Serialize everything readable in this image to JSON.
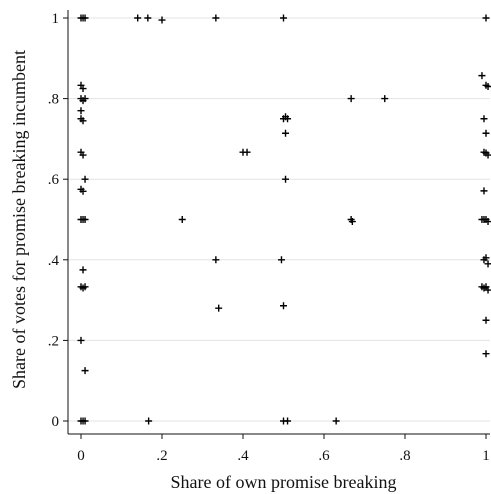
{
  "chart_data": {
    "type": "scatter",
    "xlabel": "Share of own promise breaking",
    "ylabel": "Share of votes for promise breaking incumbent",
    "xlim": [
      0,
      1
    ],
    "ylim": [
      0,
      1
    ],
    "x_ticks": [
      {
        "value": 0,
        "label": "0"
      },
      {
        "value": 0.2,
        "label": ".2"
      },
      {
        "value": 0.4,
        "label": ".4"
      },
      {
        "value": 0.6,
        "label": ".6"
      },
      {
        "value": 0.8,
        "label": ".8"
      },
      {
        "value": 1,
        "label": "1"
      }
    ],
    "y_ticks": [
      {
        "value": 0,
        "label": "0"
      },
      {
        "value": 0.2,
        "label": ".2"
      },
      {
        "value": 0.4,
        "label": ".4"
      },
      {
        "value": 0.6,
        "label": ".6"
      },
      {
        "value": 0.8,
        "label": ".8"
      },
      {
        "value": 1,
        "label": "1"
      }
    ],
    "grid": "horizontal",
    "marker": "plus",
    "colors": {
      "marker": "#000000",
      "grid": "#e3e3e3",
      "axis": "#111111"
    },
    "points": [
      {
        "x": 0,
        "y": 1
      },
      {
        "x": 0.005,
        "y": 1
      },
      {
        "x": 0.01,
        "y": 1
      },
      {
        "x": 0.14,
        "y": 1
      },
      {
        "x": 0.165,
        "y": 1
      },
      {
        "x": 0.2,
        "y": 0.995
      },
      {
        "x": 0.333,
        "y": 1
      },
      {
        "x": 0.5,
        "y": 1
      },
      {
        "x": 1,
        "y": 1
      },
      {
        "x": 0,
        "y": 0.833
      },
      {
        "x": 0.005,
        "y": 0.825
      },
      {
        "x": 0,
        "y": 0.8
      },
      {
        "x": 0.005,
        "y": 0.795
      },
      {
        "x": 0.01,
        "y": 0.8
      },
      {
        "x": 0,
        "y": 0.77
      },
      {
        "x": 0,
        "y": 0.75
      },
      {
        "x": 0.005,
        "y": 0.745
      },
      {
        "x": 0,
        "y": 0.667
      },
      {
        "x": 0.005,
        "y": 0.66
      },
      {
        "x": 0.01,
        "y": 0.6
      },
      {
        "x": 0,
        "y": 0.575
      },
      {
        "x": 0.005,
        "y": 0.57
      },
      {
        "x": 0,
        "y": 0.5
      },
      {
        "x": 0.005,
        "y": 0.5
      },
      {
        "x": 0.01,
        "y": 0.5
      },
      {
        "x": 0.005,
        "y": 0.375
      },
      {
        "x": 0,
        "y": 0.333
      },
      {
        "x": 0.005,
        "y": 0.33
      },
      {
        "x": 0.01,
        "y": 0.333
      },
      {
        "x": 0,
        "y": 0.2
      },
      {
        "x": 0.01,
        "y": 0.125
      },
      {
        "x": 0,
        "y": 0
      },
      {
        "x": 0.005,
        "y": 0
      },
      {
        "x": 0.01,
        "y": 0
      },
      {
        "x": 0.167,
        "y": 0
      },
      {
        "x": 0.25,
        "y": 0.5
      },
      {
        "x": 0.333,
        "y": 0.4
      },
      {
        "x": 0.34,
        "y": 0.28
      },
      {
        "x": 0.4,
        "y": 0.667
      },
      {
        "x": 0.41,
        "y": 0.667
      },
      {
        "x": 0.495,
        "y": 0.4
      },
      {
        "x": 0.5,
        "y": 0.286
      },
      {
        "x": 0.5,
        "y": 0.75
      },
      {
        "x": 0.505,
        "y": 0.755
      },
      {
        "x": 0.51,
        "y": 0.75
      },
      {
        "x": 0.505,
        "y": 0.714
      },
      {
        "x": 0.505,
        "y": 0.6
      },
      {
        "x": 0.5,
        "y": 0
      },
      {
        "x": 0.51,
        "y": 0
      },
      {
        "x": 0.63,
        "y": 0
      },
      {
        "x": 0.667,
        "y": 0.8
      },
      {
        "x": 0.75,
        "y": 0.8
      },
      {
        "x": 0.667,
        "y": 0.5
      },
      {
        "x": 0.67,
        "y": 0.495
      },
      {
        "x": 0.99,
        "y": 0.857
      },
      {
        "x": 1,
        "y": 0.833
      },
      {
        "x": 1.005,
        "y": 0.83
      },
      {
        "x": 0.995,
        "y": 0.75
      },
      {
        "x": 1,
        "y": 0.714
      },
      {
        "x": 0.995,
        "y": 0.667
      },
      {
        "x": 1,
        "y": 0.665
      },
      {
        "x": 1.005,
        "y": 0.66
      },
      {
        "x": 0.995,
        "y": 0.571
      },
      {
        "x": 0.99,
        "y": 0.5
      },
      {
        "x": 0.995,
        "y": 0.5
      },
      {
        "x": 1,
        "y": 0.5
      },
      {
        "x": 1.005,
        "y": 0.495
      },
      {
        "x": 0.995,
        "y": 0.4
      },
      {
        "x": 1,
        "y": 0.405
      },
      {
        "x": 1.005,
        "y": 0.39
      },
      {
        "x": 0.99,
        "y": 0.333
      },
      {
        "x": 0.995,
        "y": 0.33
      },
      {
        "x": 1,
        "y": 0.333
      },
      {
        "x": 1.005,
        "y": 0.325
      },
      {
        "x": 1,
        "y": 0.25
      },
      {
        "x": 1,
        "y": 0.167
      }
    ]
  }
}
